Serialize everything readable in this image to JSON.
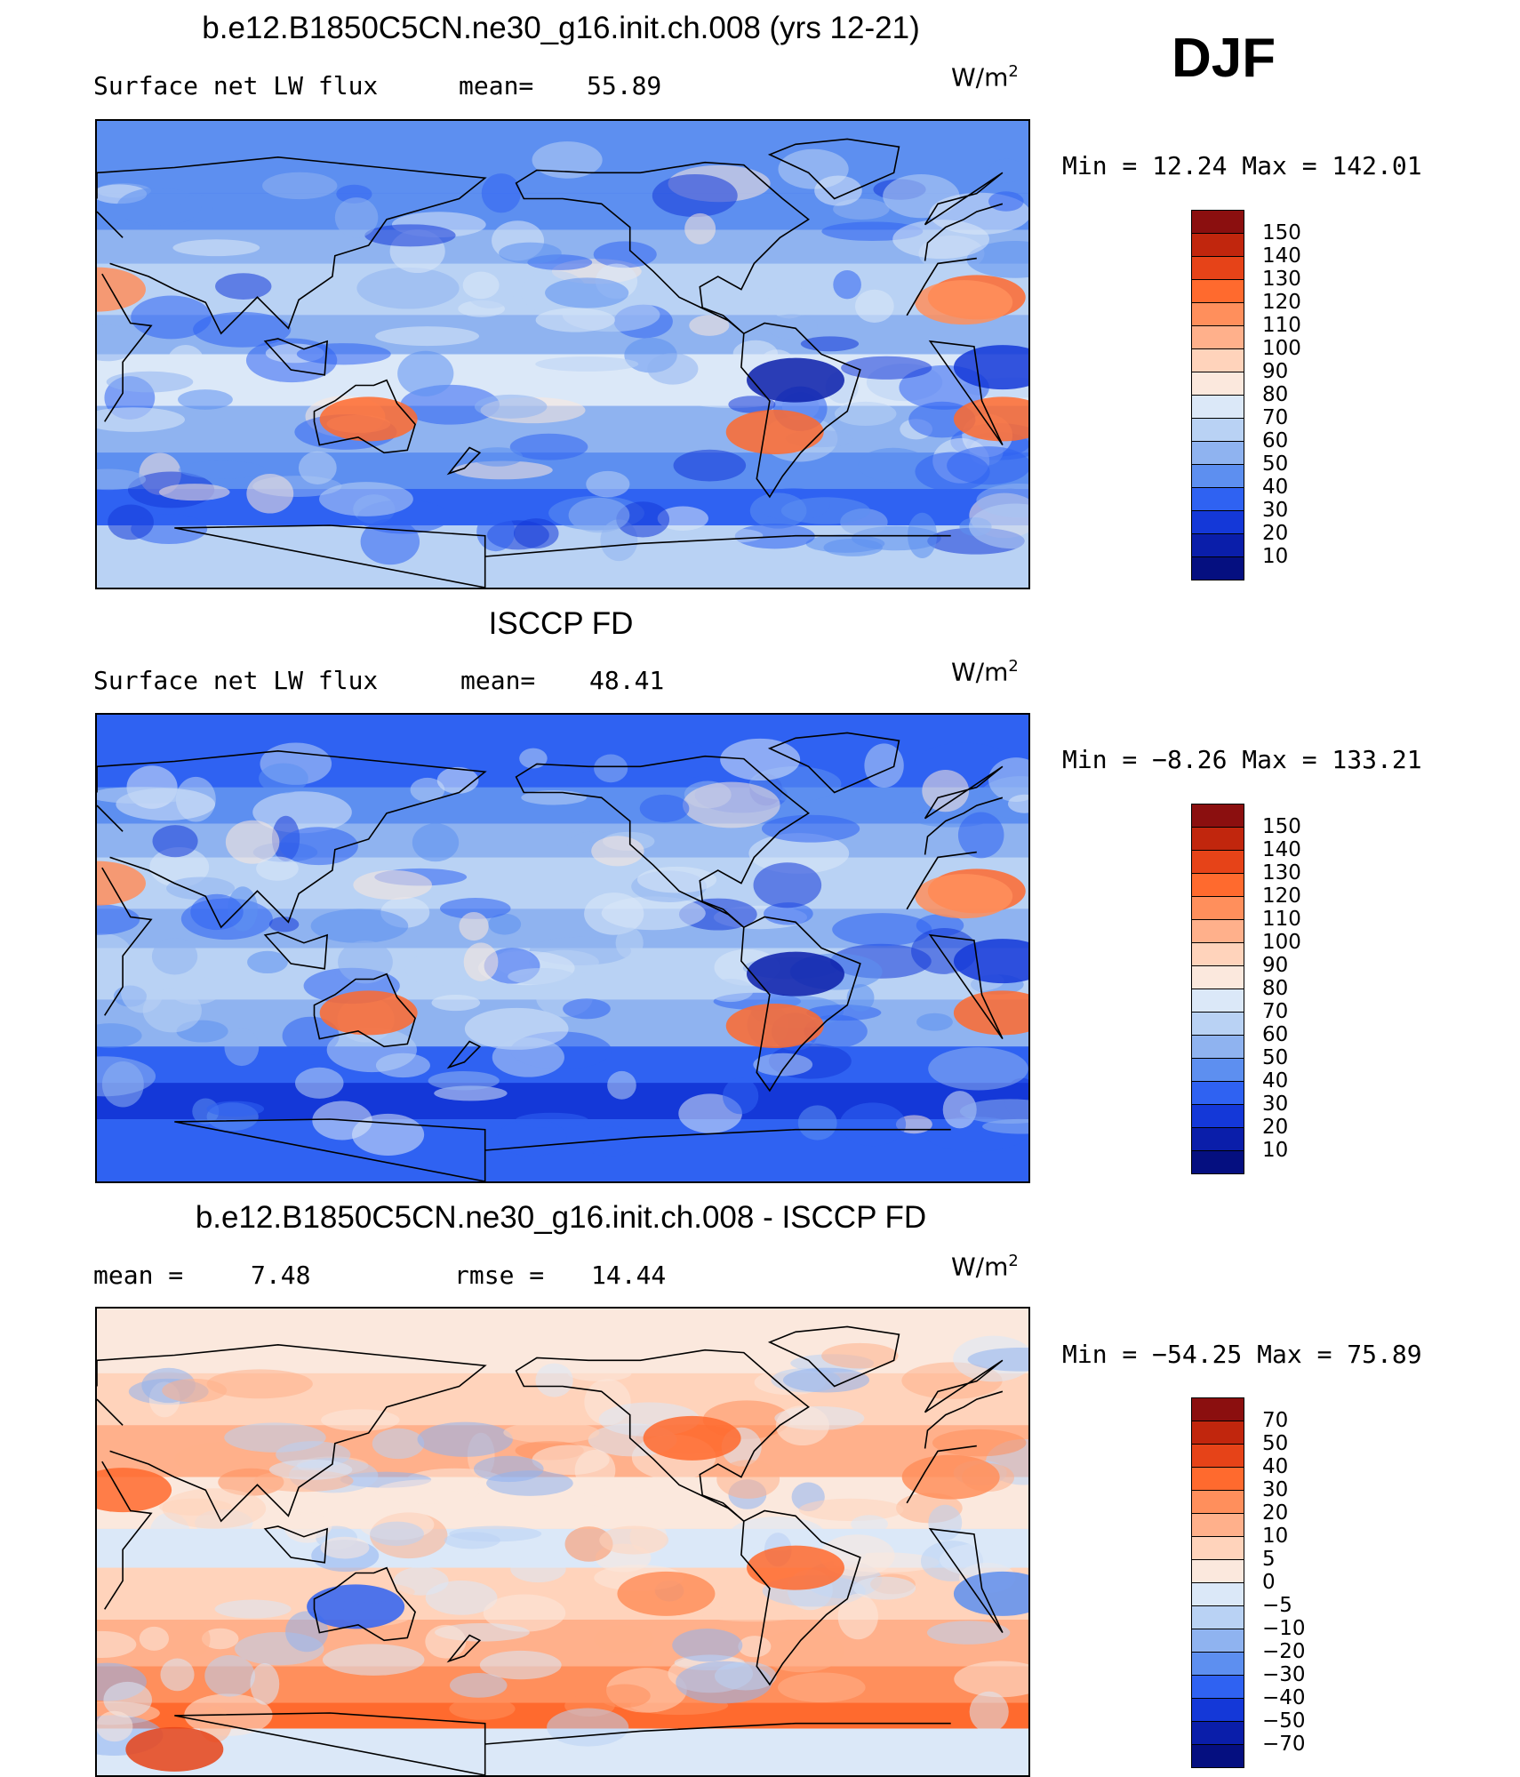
{
  "header": {
    "season": "DJF"
  },
  "panels": [
    {
      "title": "b.e12.B1850C5CN.ne30_g16.init.ch.008 (yrs 12-21)",
      "left_label": "Surface net LW flux",
      "center_label": "mean=",
      "center_value": "55.89",
      "unit": "W/m",
      "unit_exp": "2",
      "minmax": "Min =   12.24 Max =  142.01",
      "kind": "model",
      "colorbar": [
        "150",
        "140",
        "130",
        "120",
        "110",
        "100",
        "90",
        "80",
        "70",
        "60",
        "50",
        "40",
        "30",
        "20",
        "10"
      ],
      "colors": [
        "#8b0f0f",
        "#c1260d",
        "#e64318",
        "#ff6a2e",
        "#ff8f5c",
        "#ffb08b",
        "#ffd3bb",
        "#fbe8dd",
        "#dbe8f8",
        "#b9d2f4",
        "#8fb3f0",
        "#5d8ff0",
        "#2f62f2",
        "#1438d8",
        "#0a1eaa",
        "#050f80"
      ]
    },
    {
      "title": "ISCCP FD",
      "left_label": "Surface net LW flux",
      "center_label": "mean=",
      "center_value": "48.41",
      "unit": "W/m",
      "unit_exp": "2",
      "minmax": "Min =   −8.26 Max =  133.21",
      "kind": "obs",
      "colorbar": [
        "150",
        "140",
        "130",
        "120",
        "110",
        "100",
        "90",
        "80",
        "70",
        "60",
        "50",
        "40",
        "30",
        "20",
        "10"
      ],
      "colors": [
        "#8b0f0f",
        "#c1260d",
        "#e64318",
        "#ff6a2e",
        "#ff8f5c",
        "#ffb08b",
        "#ffd3bb",
        "#fbe8dd",
        "#dbe8f8",
        "#b9d2f4",
        "#8fb3f0",
        "#5d8ff0",
        "#2f62f2",
        "#1438d8",
        "#0a1eaa",
        "#050f80"
      ]
    },
    {
      "title": "b.e12.B1850C5CN.ne30_g16.init.ch.008 - ISCCP FD",
      "left_label": "mean =",
      "left_value": "7.48",
      "center_label": "rmse =",
      "center_value": "14.44",
      "unit": "W/m",
      "unit_exp": "2",
      "minmax": "Min = −54.25 Max =   75.89",
      "kind": "diff",
      "colorbar": [
        "70",
        "50",
        "40",
        "30",
        "20",
        "10",
        "5",
        "0",
        "−5",
        "−10",
        "−20",
        "−30",
        "−40",
        "−50",
        "−70"
      ],
      "colors": [
        "#8b0f0f",
        "#c1260d",
        "#e64318",
        "#ff6a2e",
        "#ff8f5c",
        "#ffb08b",
        "#ffd3bb",
        "#fbe8dd",
        "#dbe8f8",
        "#b9d2f4",
        "#8fb3f0",
        "#5d8ff0",
        "#2f62f2",
        "#1438d8",
        "#0a1eaa",
        "#050f80"
      ]
    }
  ]
}
